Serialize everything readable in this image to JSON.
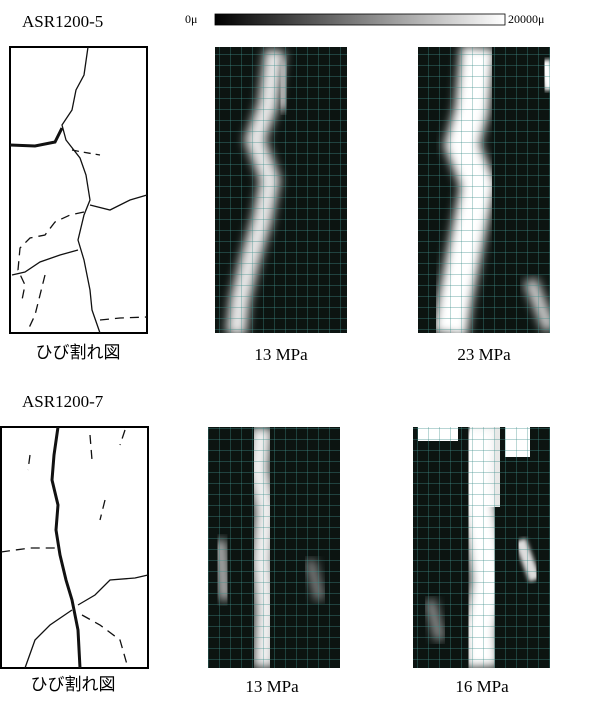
{
  "colorbar": {
    "min_label": "0μ",
    "max_label": "20000μ"
  },
  "specimens": [
    {
      "name": "ASR1200-5",
      "crack_label": "ひび割れ図",
      "panels": [
        "13 MPa",
        "23 MPa"
      ]
    },
    {
      "name": "ASR1200-7",
      "crack_label": "ひび割れ図",
      "panels": [
        "13 MPa",
        "16 MPa"
      ]
    }
  ]
}
